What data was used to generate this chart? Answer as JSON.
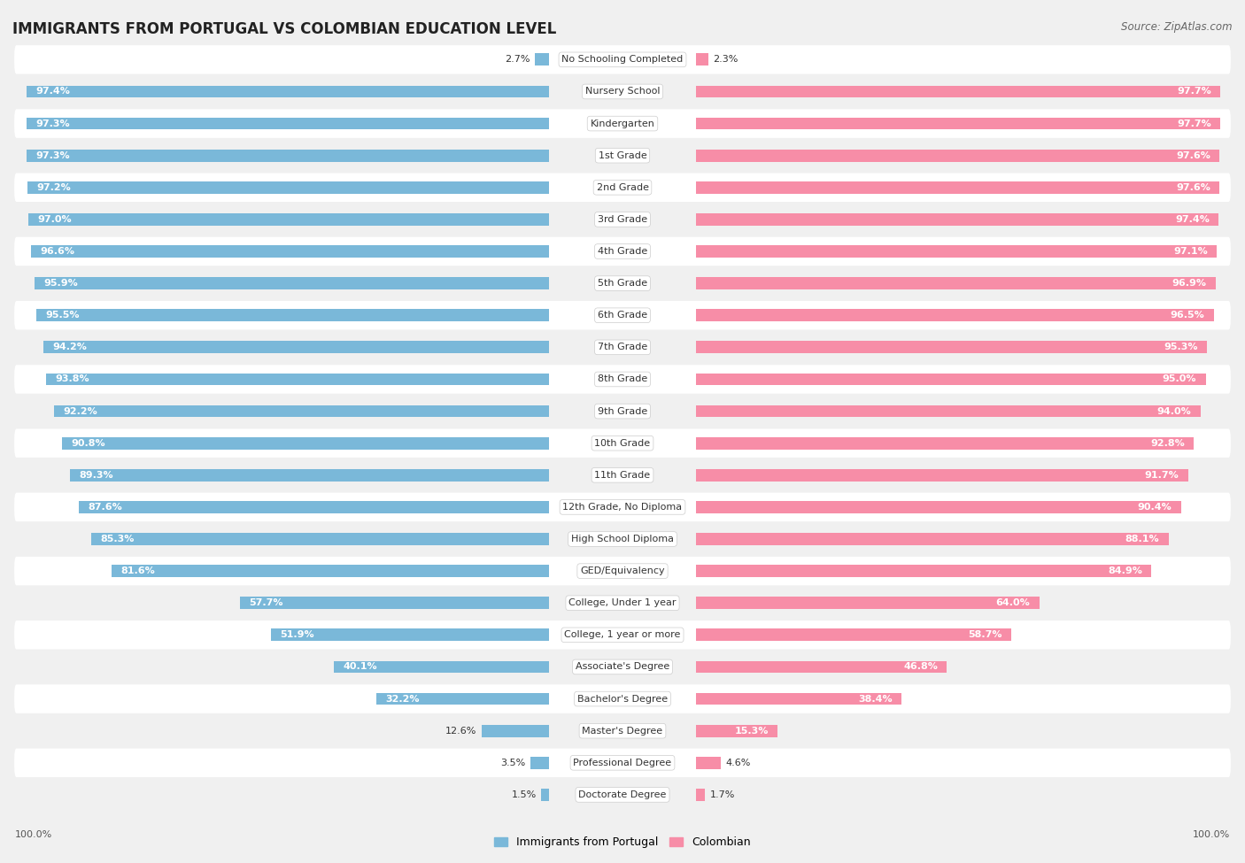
{
  "title": "IMMIGRANTS FROM PORTUGAL VS COLOMBIAN EDUCATION LEVEL",
  "source": "Source: ZipAtlas.com",
  "categories": [
    "No Schooling Completed",
    "Nursery School",
    "Kindergarten",
    "1st Grade",
    "2nd Grade",
    "3rd Grade",
    "4th Grade",
    "5th Grade",
    "6th Grade",
    "7th Grade",
    "8th Grade",
    "9th Grade",
    "10th Grade",
    "11th Grade",
    "12th Grade, No Diploma",
    "High School Diploma",
    "GED/Equivalency",
    "College, Under 1 year",
    "College, 1 year or more",
    "Associate's Degree",
    "Bachelor's Degree",
    "Master's Degree",
    "Professional Degree",
    "Doctorate Degree"
  ],
  "portugal_values": [
    2.7,
    97.4,
    97.3,
    97.3,
    97.2,
    97.0,
    96.6,
    95.9,
    95.5,
    94.2,
    93.8,
    92.2,
    90.8,
    89.3,
    87.6,
    85.3,
    81.6,
    57.7,
    51.9,
    40.1,
    32.2,
    12.6,
    3.5,
    1.5
  ],
  "colombian_values": [
    2.3,
    97.7,
    97.7,
    97.6,
    97.6,
    97.4,
    97.1,
    96.9,
    96.5,
    95.3,
    95.0,
    94.0,
    92.8,
    91.7,
    90.4,
    88.1,
    84.9,
    64.0,
    58.7,
    46.8,
    38.4,
    15.3,
    4.6,
    1.7
  ],
  "portugal_color": "#7ab8d9",
  "colombian_color": "#f78da7",
  "background_color": "#f0f0f0",
  "row_color_odd": "#ffffff",
  "row_color_even": "#f0f0f0",
  "title_fontsize": 12,
  "label_fontsize": 8,
  "value_fontsize": 8,
  "legend_fontsize": 9,
  "source_fontsize": 8.5
}
